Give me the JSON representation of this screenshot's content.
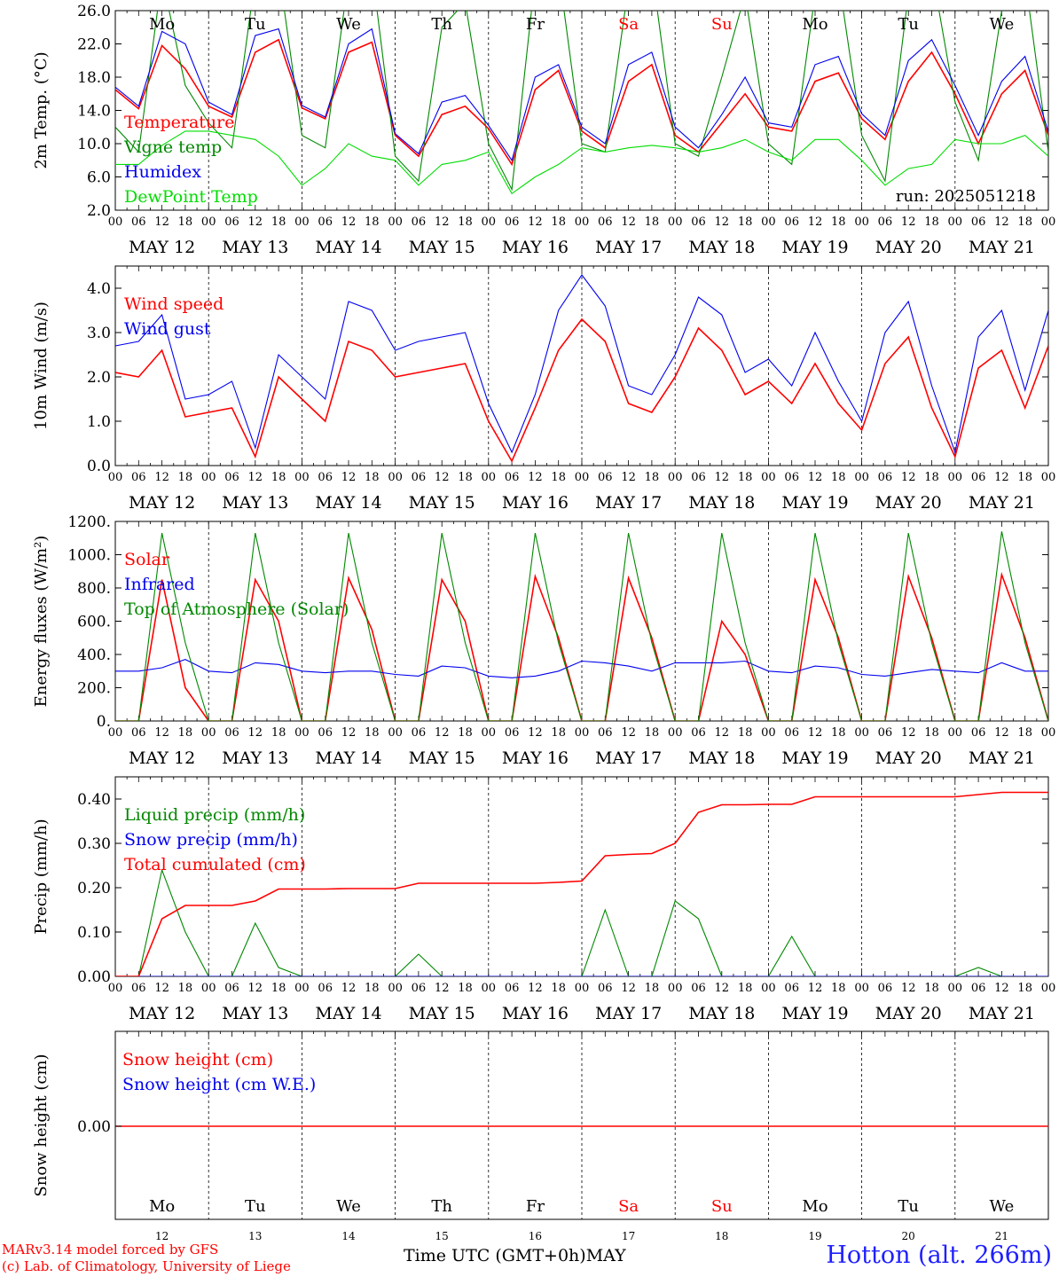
{
  "chart_data": {
    "type": "line",
    "run_label": "run: 2025051218",
    "weekdays": [
      {
        "label": "Mo",
        "weekend": false
      },
      {
        "label": "Tu",
        "weekend": false
      },
      {
        "label": "We",
        "weekend": false
      },
      {
        "label": "Th",
        "weekend": false
      },
      {
        "label": "Fr",
        "weekend": false
      },
      {
        "label": "Sa",
        "weekend": true
      },
      {
        "label": "Su",
        "weekend": true
      },
      {
        "label": "Mo",
        "weekend": false
      },
      {
        "label": "Tu",
        "weekend": false
      },
      {
        "label": "We",
        "weekend": false
      }
    ],
    "date_labels": [
      "MAY 12",
      "MAY 13",
      "MAY 14",
      "MAY 15",
      "MAY 16",
      "MAY 17",
      "MAY 18",
      "MAY 19",
      "MAY 20",
      "MAY 21"
    ],
    "hour_ticks": [
      "00",
      "06",
      "12",
      "18"
    ],
    "hour_end_label": "00",
    "day_numbers": [
      "12",
      "13",
      "14",
      "15",
      "16",
      "17",
      "18",
      "19",
      "20",
      "21"
    ],
    "x_time_hours": [
      0,
      6,
      12,
      18,
      24,
      30,
      36,
      42,
      48,
      54,
      60,
      66,
      72,
      78,
      84,
      90,
      96,
      102,
      108,
      114,
      120,
      126,
      132,
      138,
      144,
      150,
      156,
      162,
      168,
      174,
      180,
      186,
      192,
      198,
      204,
      210,
      216,
      222,
      228,
      234,
      240
    ],
    "x_axis_label": "Time UTC (GMT+0h)",
    "x_month_label": "MAY",
    "colors": {
      "red": "#ff0000",
      "blue": "#0000ee",
      "darkgreen": "#008800",
      "lightgreen": "#00dd00",
      "station": "#1f1fff"
    },
    "panels": {
      "temperature": {
        "ylabel": "2m Temp. (°C)",
        "ylim": [
          2.0,
          26.0
        ],
        "yticks": [
          "2.0",
          "6.0",
          "10.0",
          "14.0",
          "18.0",
          "22.0",
          "26.0"
        ],
        "series": [
          {
            "name": "Temperature",
            "color": "#ff0000",
            "values": [
              16.5,
              14.2,
              21.8,
              19.0,
              14.5,
              13.2,
              21.0,
              22.5,
              14.3,
              13.0,
              21.0,
              22.2,
              11.0,
              8.5,
              13.5,
              14.5,
              11.8,
              7.5,
              16.5,
              18.8,
              11.5,
              9.5,
              17.5,
              19.5,
              11.0,
              9.0,
              12.5,
              16.0,
              12.0,
              11.5,
              17.5,
              18.5,
              13.0,
              10.5,
              17.5,
              21.0,
              16.0,
              10.0,
              16.0,
              18.8,
              11.0
            ]
          },
          {
            "name": "Vigne temp",
            "color": "#008800",
            "values": [
              12.0,
              9.0,
              30.0,
              17.0,
              12.5,
              9.5,
              30.0,
              31.0,
              11.0,
              9.5,
              30.0,
              31.0,
              8.5,
              5.5,
              24.0,
              27.0,
              10.0,
              4.5,
              30.0,
              31.0,
              10.0,
              9.0,
              29.0,
              31.0,
              10.0,
              8.5,
              18.0,
              28.0,
              10.0,
              7.5,
              28.0,
              30.0,
              11.0,
              5.5,
              28.0,
              31.0,
              15.0,
              8.0,
              26.0,
              30.0,
              9.0
            ]
          },
          {
            "name": "Humidex",
            "color": "#0000ee",
            "values": [
              16.8,
              14.5,
              23.5,
              22.0,
              15.0,
              13.5,
              23.0,
              23.8,
              14.6,
              13.2,
              22.0,
              23.8,
              11.2,
              8.8,
              15.0,
              15.8,
              12.2,
              8.0,
              18.0,
              19.5,
              12.0,
              10.0,
              19.5,
              21.0,
              12.0,
              9.5,
              13.5,
              18.0,
              12.5,
              12.0,
              19.5,
              20.5,
              13.6,
              11.0,
              20.0,
              22.5,
              17.0,
              11.0,
              17.5,
              20.5,
              11.4
            ]
          },
          {
            "name": "DewPoint Temp",
            "color": "#00dd00",
            "values": [
              7.5,
              7.5,
              9.8,
              11.5,
              11.5,
              11.0,
              10.5,
              8.5,
              5.0,
              7.0,
              10.0,
              8.5,
              8.0,
              5.0,
              7.5,
              8.0,
              9.0,
              4.0,
              6.0,
              7.5,
              9.5,
              9.0,
              9.5,
              9.8,
              9.5,
              9.0,
              9.5,
              10.5,
              9.0,
              8.0,
              10.5,
              10.5,
              8.0,
              5.0,
              7.0,
              7.5,
              10.5,
              10.0,
              10.0,
              11.0,
              8.5
            ]
          }
        ]
      },
      "wind": {
        "ylabel": "10m Wind (m/s)",
        "ylim": [
          0.0,
          4.5
        ],
        "yticks": [
          "0.0",
          "1.0",
          "2.0",
          "3.0",
          "4.0"
        ],
        "series": [
          {
            "name": "Wind speed",
            "color": "#ff0000",
            "values": [
              2.1,
              2.0,
              2.6,
              1.1,
              1.2,
              1.3,
              0.2,
              2.0,
              1.5,
              1.0,
              2.8,
              2.6,
              2.0,
              2.1,
              2.2,
              2.3,
              1.0,
              0.1,
              1.3,
              2.6,
              3.3,
              2.8,
              1.4,
              1.2,
              2.0,
              3.1,
              2.6,
              1.6,
              1.9,
              1.4,
              2.3,
              1.4,
              0.8,
              2.3,
              2.9,
              1.3,
              0.2,
              2.2,
              2.6,
              1.3,
              2.7
            ]
          },
          {
            "name": "Wind gust",
            "color": "#0000ee",
            "values": [
              2.7,
              2.8,
              3.4,
              1.5,
              1.6,
              1.9,
              0.4,
              2.5,
              2.0,
              1.5,
              3.7,
              3.5,
              2.6,
              2.8,
              2.9,
              3.0,
              1.4,
              0.3,
              1.6,
              3.5,
              4.3,
              3.6,
              1.8,
              1.6,
              2.5,
              3.8,
              3.4,
              2.1,
              2.4,
              1.8,
              3.0,
              1.9,
              1.0,
              3.0,
              3.7,
              1.8,
              0.3,
              2.9,
              3.5,
              1.7,
              3.5
            ]
          }
        ]
      },
      "energy": {
        "ylabel": "Energy fluxes (W/m²)",
        "ylim": [
          0,
          1200
        ],
        "yticks": [
          "0.",
          "200.",
          "400.",
          "600.",
          "800.",
          "1000.",
          "1200."
        ],
        "series": [
          {
            "name": "Solar",
            "color": "#ff0000",
            "values": [
              0,
              0,
              850,
              200,
              0,
              0,
              850,
              600,
              0,
              0,
              860,
              550,
              0,
              0,
              850,
              600,
              0,
              0,
              870,
              500,
              0,
              0,
              860,
              500,
              0,
              0,
              600,
              400,
              0,
              0,
              850,
              500,
              0,
              0,
              870,
              500,
              0,
              0,
              880,
              500,
              0
            ]
          },
          {
            "name": "Infrared",
            "color": "#0000ee",
            "values": [
              300,
              300,
              320,
              370,
              300,
              290,
              350,
              340,
              300,
              290,
              300,
              300,
              280,
              270,
              330,
              320,
              270,
              260,
              270,
              300,
              360,
              350,
              330,
              300,
              350,
              350,
              350,
              360,
              300,
              290,
              330,
              320,
              280,
              270,
              290,
              310,
              300,
              290,
              350,
              300,
              300
            ]
          },
          {
            "name": "Top of Atmosphere (Solar)",
            "color": "#008800",
            "values": [
              0,
              0,
              1130,
              470,
              0,
              0,
              1130,
              470,
              0,
              0,
              1130,
              470,
              0,
              0,
              1130,
              470,
              0,
              0,
              1130,
              470,
              0,
              0,
              1130,
              470,
              0,
              0,
              1130,
              470,
              0,
              0,
              1130,
              470,
              0,
              0,
              1130,
              470,
              0,
              0,
              1140,
              470,
              0
            ]
          }
        ]
      },
      "precip": {
        "ylabel": "Precip (mm/h)",
        "ylim": [
          0.0,
          0.45
        ],
        "yticks": [
          "0.00",
          "0.10",
          "0.20",
          "0.30",
          "0.40"
        ],
        "series": [
          {
            "name": "Liquid precip (mm/h)",
            "color": "#008800",
            "values": [
              0,
              0,
              0.24,
              0.1,
              0,
              0,
              0.12,
              0.02,
              0,
              0,
              0,
              0,
              0,
              0.05,
              0,
              0,
              0,
              0,
              0,
              0,
              0,
              0.15,
              0,
              0,
              0.17,
              0.13,
              0,
              0,
              0,
              0.09,
              0,
              0,
              0,
              0,
              0,
              0,
              0,
              0.02,
              0,
              0,
              0
            ]
          },
          {
            "name": "Snow precip (mm/h)",
            "color": "#0000ee",
            "values": [
              0,
              0,
              0,
              0,
              0,
              0,
              0,
              0,
              0,
              0,
              0,
              0,
              0,
              0,
              0,
              0,
              0,
              0,
              0,
              0,
              0,
              0,
              0,
              0,
              0,
              0,
              0,
              0,
              0,
              0,
              0,
              0,
              0,
              0,
              0,
              0,
              0,
              0,
              0,
              0,
              0
            ]
          },
          {
            "name": "Total cumulated (cm)",
            "color": "#ff0000",
            "values": [
              0,
              0,
              0.13,
              0.16,
              0.16,
              0.16,
              0.17,
              0.197,
              0.197,
              0.197,
              0.198,
              0.198,
              0.198,
              0.21,
              0.21,
              0.21,
              0.21,
              0.21,
              0.21,
              0.212,
              0.215,
              0.272,
              0.275,
              0.277,
              0.3,
              0.37,
              0.387,
              0.387,
              0.388,
              0.388,
              0.405,
              0.405,
              0.405,
              0.405,
              0.405,
              0.405,
              0.405,
              0.41,
              0.415,
              0.415,
              0.415
            ]
          }
        ]
      },
      "snow": {
        "ylabel": "Snow height (cm)",
        "ytick": "0.00",
        "series": [
          {
            "name": "Snow height (cm)",
            "color": "#ff0000",
            "value": 0.0
          },
          {
            "name": "Snow height (cm W.E.)",
            "color": "#0000ee",
            "value": 0.0
          }
        ]
      }
    }
  },
  "footer": {
    "credit_line1": "MARv3.14 model forced by GFS",
    "credit_line2": "(c) Lab. of Climatology, University of Liege",
    "station": "Hotton (alt. 266m)"
  }
}
